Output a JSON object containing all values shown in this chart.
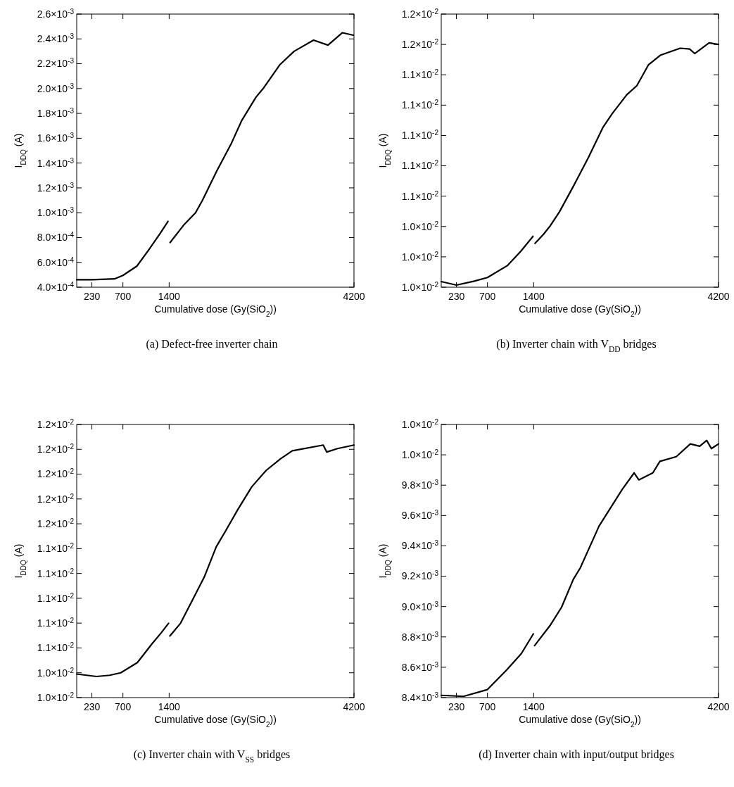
{
  "chart_data": [
    {
      "type": "line",
      "title": "(a) Defect-free inverter chain",
      "xlabel": "Cumulative dose (Gy(SiO$_{2}$))",
      "ylabel": "I$_{DDQ}$ (A)",
      "xlim": [
        0,
        4200
      ],
      "xticks": [
        230,
        700,
        1400,
        4200
      ],
      "ylim": [
        0.0004,
        0.0026
      ],
      "yticks": [
        {
          "value": 0.0004,
          "label": "4.0×10$^{-4}$"
        },
        {
          "value": 0.0006,
          "label": "6.0×10$^{-4}$"
        },
        {
          "value": 0.0008,
          "label": "8.0×10$^{-4}$"
        },
        {
          "value": 0.001,
          "label": "1.0×10$^{-3}$"
        },
        {
          "value": 0.0012,
          "label": "1.2×10$^{-3}$"
        },
        {
          "value": 0.0014,
          "label": "1.4×10$^{-3}$"
        },
        {
          "value": 0.0016,
          "label": "1.6×10$^{-3}$"
        },
        {
          "value": 0.0018,
          "label": "1.8×10$^{-3}$"
        },
        {
          "value": 0.002,
          "label": "2.0×10$^{-3}$"
        },
        {
          "value": 0.0022,
          "label": "2.2×10$^{-3}$"
        },
        {
          "value": 0.0024,
          "label": "2.4×10$^{-3}$"
        },
        {
          "value": 0.0026,
          "label": "2.6×10$^{-3}$"
        }
      ],
      "x": [
        0,
        230,
        572,
        700,
        912,
        1090,
        1260,
        1382,
        1400,
        1415,
        1620,
        1800,
        1905,
        2125,
        2344,
        2497,
        2715,
        2824,
        3074,
        3293,
        3588,
        3806,
        4025,
        4190
      ],
      "series": [
        {
          "color": "#000000",
          "values": [
            0.00046,
            0.00046,
            0.000467,
            0.000495,
            0.00057,
            0.0007,
            0.00083,
            0.00093,
            null,
            0.00076,
            0.0009,
            0.001,
            0.0011,
            0.00134,
            0.00156,
            0.00174,
            0.00193,
            0.002,
            0.00219,
            0.0023,
            0.00239,
            0.00235,
            0.00245,
            0.00243
          ]
        }
      ]
    },
    {
      "type": "line",
      "title": "(b) Inverter chain with V$_{DD}$ bridges",
      "xlabel": "Cumulative dose (Gy(SiO$_{2}$))",
      "ylabel": "I$_{DDQ}$ (A)",
      "xlim": [
        0,
        4200
      ],
      "xticks": [
        230,
        700,
        1400,
        4200
      ],
      "ylim": [
        0.01,
        0.0118
      ],
      "yticks": [
        {
          "value": 0.01,
          "label": "1.0×10$^{-2}$"
        },
        {
          "value": 0.0102,
          "label": "1.0×10$^{-2}$"
        },
        {
          "value": 0.0104,
          "label": "1.0×10$^{-2}$"
        },
        {
          "value": 0.0106,
          "label": "1.1×10$^{-2}$"
        },
        {
          "value": 0.0108,
          "label": "1.1×10$^{-2}$"
        },
        {
          "value": 0.011,
          "label": "1.1×10$^{-2}$"
        },
        {
          "value": 0.0112,
          "label": "1.1×10$^{-2}$"
        },
        {
          "value": 0.0114,
          "label": "1.1×10$^{-2}$"
        },
        {
          "value": 0.0116,
          "label": "1.2×10$^{-2}$"
        },
        {
          "value": 0.0118,
          "label": "1.2×10$^{-2}$"
        }
      ],
      "x": [
        0,
        230,
        500,
        700,
        1000,
        1200,
        1390,
        1400,
        1420,
        1550,
        1650,
        1791,
        2010,
        2229,
        2448,
        2590,
        2810,
        2963,
        3138,
        3324,
        3620,
        3762,
        3839,
        4058,
        4200
      ],
      "series": [
        {
          "color": "#000000",
          "values": [
            0.010037,
            0.010014,
            0.01004,
            0.010064,
            0.010142,
            0.010234,
            0.010335,
            null,
            0.010289,
            0.010349,
            0.010404,
            0.010497,
            0.010672,
            0.010855,
            0.011052,
            0.011144,
            0.011268,
            0.011328,
            0.011465,
            0.01153,
            0.011575,
            0.01157,
            0.01154,
            0.01161,
            0.0116
          ]
        }
      ]
    },
    {
      "type": "line",
      "title": "(c) Inverter chain with V$_{SS}$ bridges",
      "xlabel": "Cumulative dose (Gy(SiO$_{2}$))",
      "ylabel": "I$_{DDQ}$ (A)",
      "xlim": [
        0,
        4200
      ],
      "xticks": [
        230,
        700,
        1400,
        4200
      ],
      "ylim": [
        0.0102,
        0.0124
      ],
      "yticks": [
        {
          "value": 0.0102,
          "label": "1.0×10$^{-2}$"
        },
        {
          "value": 0.0104,
          "label": "1.0×10$^{-2}$"
        },
        {
          "value": 0.0106,
          "label": "1.1×10$^{-2}$"
        },
        {
          "value": 0.0108,
          "label": "1.1×10$^{-2}$"
        },
        {
          "value": 0.011,
          "label": "1.1×10$^{-2}$"
        },
        {
          "value": 0.0112,
          "label": "1.1×10$^{-2}$"
        },
        {
          "value": 0.0114,
          "label": "1.1×10$^{-2}$"
        },
        {
          "value": 0.0116,
          "label": "1.2×10$^{-2}$"
        },
        {
          "value": 0.0118,
          "label": "1.2×10$^{-2}$"
        },
        {
          "value": 0.012,
          "label": "1.2×10$^{-2}$"
        },
        {
          "value": 0.0122,
          "label": "1.2×10$^{-2}$"
        },
        {
          "value": 0.0124,
          "label": "1.2×10$^{-2}$"
        }
      ],
      "x": [
        0,
        300,
        500,
        667,
        919,
        1137,
        1283,
        1392,
        1400,
        1411,
        1573,
        1753,
        1933,
        2113,
        2257,
        2437,
        2653,
        2870,
        3086,
        3266,
        3734,
        3788,
        3950,
        4200
      ],
      "series": [
        {
          "color": "#000000",
          "values": [
            0.01039,
            0.01037,
            0.01038,
            0.0104,
            0.010482,
            0.010631,
            0.010724,
            0.010799,
            null,
            0.010696,
            0.010799,
            0.010985,
            0.011172,
            0.011414,
            0.011544,
            0.011712,
            0.011899,
            0.01203,
            0.012123,
            0.012188,
            0.012234,
            0.012178,
            0.012206,
            0.012234
          ]
        }
      ]
    },
    {
      "type": "line",
      "title": "(d) Inverter chain with input/output bridges",
      "xlabel": "Cumulative dose (Gy(SiO$_{2}$))",
      "ylabel": "I$_{DDQ}$ (A)",
      "xlim": [
        0,
        4200
      ],
      "xticks": [
        230,
        700,
        1400,
        4200
      ],
      "ylim": [
        0.0084,
        0.0102
      ],
      "yticks": [
        {
          "value": 0.0084,
          "label": "8.4×10$^{-3}$"
        },
        {
          "value": 0.0086,
          "label": "8.6×10$^{-3}$"
        },
        {
          "value": 0.0088,
          "label": "8.8×10$^{-3}$"
        },
        {
          "value": 0.009,
          "label": "9.0×10$^{-3}$"
        },
        {
          "value": 0.0092,
          "label": "9.2×10$^{-3}$"
        },
        {
          "value": 0.0094,
          "label": "9.4×10$^{-3}$"
        },
        {
          "value": 0.0096,
          "label": "9.6×10$^{-3}$"
        },
        {
          "value": 0.0098,
          "label": "9.8×10$^{-3}$"
        },
        {
          "value": 0.01,
          "label": "1.0×10$^{-2}$"
        },
        {
          "value": 0.0102,
          "label": "1.0×10$^{-2}$"
        }
      ],
      "x": [
        0,
        338,
        700,
        993,
        1213,
        1395,
        1400,
        1414,
        1645,
        1822,
        2000,
        2106,
        2248,
        2390,
        2567,
        2744,
        2922,
        2993,
        3205,
        3312,
        3560,
        3773,
        3915,
        4021,
        4092,
        4200
      ],
      "series": [
        {
          "color": "#000000",
          "values": [
            0.008415,
            0.008408,
            0.008453,
            0.008583,
            0.00869,
            0.00882,
            null,
            0.008743,
            0.008873,
            0.008995,
            0.009179,
            0.009255,
            0.009392,
            0.00953,
            0.009652,
            0.009774,
            0.009881,
            0.009835,
            0.009881,
            0.009957,
            0.009988,
            0.010072,
            0.010057,
            0.010095,
            0.010041,
            0.010072
          ]
        }
      ]
    }
  ]
}
